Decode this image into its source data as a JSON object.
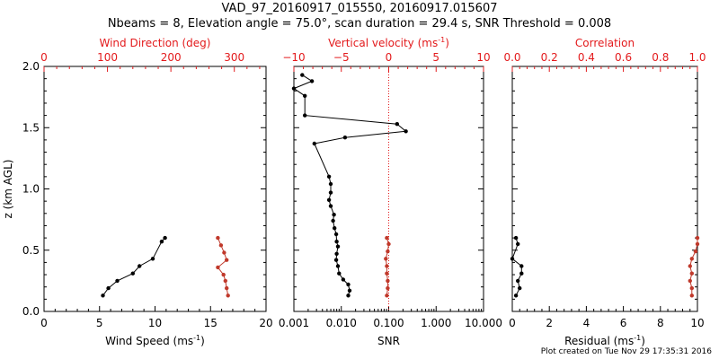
{
  "title_line1": "VAD_97_20160917_015550, 20160917.015607",
  "title_line2": "Nbeams = 8, Elevation angle = 75.0°, scan duration = 29.4 s, SNR Threshold = 0.008",
  "footer": "Plot created on Tue Nov 29 17:35:31 2016",
  "colors": {
    "black_series": "#000000",
    "red_series": "#c0392b",
    "top_axis": "#e31a1c"
  },
  "chart_data": [
    {
      "panel": "left",
      "type": "line",
      "ylabel": "z (km AGL)",
      "ylim": [
        0.0,
        2.0
      ],
      "y_ticks": [
        "0.0",
        "0.5",
        "1.0",
        "1.5",
        "2.0"
      ],
      "bottom_axis": {
        "label_main": "Wind Speed (ms",
        "label_sup": "-1",
        "label_end": ")",
        "range": [
          0,
          20
        ],
        "ticks": [
          "0",
          "5",
          "10",
          "15",
          "20"
        ]
      },
      "top_axis": {
        "label_main": "Wind Direction (deg)",
        "label_sup": "",
        "label_end": "",
        "range": [
          0,
          350
        ],
        "ticks": [
          "0",
          "100",
          "200",
          "300"
        ],
        "tick_values": [
          0,
          100,
          200,
          300
        ]
      },
      "series": [
        {
          "axis": "bottom",
          "color_key": "black_series",
          "points": [
            [
              10.9,
              0.6
            ],
            [
              10.6,
              0.57
            ],
            [
              9.8,
              0.43
            ],
            [
              8.6,
              0.37
            ],
            [
              8.0,
              0.31
            ],
            [
              6.6,
              0.25
            ],
            [
              5.8,
              0.19
            ],
            [
              5.3,
              0.13
            ]
          ]
        },
        {
          "axis": "top",
          "color_key": "red_series",
          "points": [
            [
              274,
              0.6
            ],
            [
              279,
              0.54
            ],
            [
              284,
              0.48
            ],
            [
              288,
              0.42
            ],
            [
              274,
              0.36
            ],
            [
              283,
              0.3
            ],
            [
              286,
              0.25
            ],
            [
              288,
              0.19
            ],
            [
              290,
              0.13
            ]
          ]
        }
      ]
    },
    {
      "panel": "middle",
      "type": "line",
      "ylim": [
        0.0,
        2.0
      ],
      "bottom_axis": {
        "label_main": "SNR",
        "label_sup": "",
        "label_end": "",
        "scale": "log",
        "range": [
          0.001,
          10
        ],
        "ticks": [
          "0.001",
          "0.010",
          "0.100",
          "1.000",
          "10.000"
        ],
        "tick_values": [
          0.001,
          0.01,
          0.1,
          1,
          10
        ]
      },
      "top_axis": {
        "label_main": "Vertical velocity (ms",
        "label_sup": "-1",
        "label_end": ")",
        "range": [
          -10,
          10
        ],
        "ticks": [
          "−10",
          "−5",
          "0",
          "5",
          "10"
        ],
        "tick_values": [
          -10,
          -5,
          0,
          5,
          10
        ]
      },
      "zero_line": 0,
      "series": [
        {
          "axis": "bottom",
          "color_key": "black_series",
          "points": [
            [
              0.0015,
              1.93
            ],
            [
              0.0024,
              1.88
            ],
            [
              0.001,
              1.82
            ],
            [
              0.0017,
              1.76
            ],
            [
              0.0017,
              1.6
            ],
            [
              0.15,
              1.53
            ],
            [
              0.23,
              1.47
            ],
            [
              0.012,
              1.42
            ],
            [
              0.0027,
              1.37
            ],
            [
              0.0055,
              1.1
            ],
            [
              0.006,
              1.04
            ],
            [
              0.006,
              0.97
            ],
            [
              0.0055,
              0.91
            ],
            [
              0.006,
              0.86
            ],
            [
              0.007,
              0.79
            ],
            [
              0.0067,
              0.74
            ],
            [
              0.0072,
              0.68
            ],
            [
              0.0078,
              0.63
            ],
            [
              0.008,
              0.57
            ],
            [
              0.0085,
              0.53
            ],
            [
              0.008,
              0.47
            ],
            [
              0.0078,
              0.42
            ],
            [
              0.0085,
              0.37
            ],
            [
              0.009,
              0.31
            ],
            [
              0.011,
              0.26
            ],
            [
              0.014,
              0.22
            ],
            [
              0.015,
              0.17
            ],
            [
              0.014,
              0.13
            ]
          ]
        },
        {
          "axis": "top",
          "color_key": "red_series",
          "points": [
            [
              -0.2,
              0.6
            ],
            [
              0.0,
              0.55
            ],
            [
              -0.1,
              0.49
            ],
            [
              -0.3,
              0.43
            ],
            [
              -0.2,
              0.37
            ],
            [
              -0.2,
              0.31
            ],
            [
              -0.1,
              0.25
            ],
            [
              -0.1,
              0.19
            ],
            [
              -0.2,
              0.13
            ]
          ]
        }
      ]
    },
    {
      "panel": "right",
      "type": "line",
      "ylim": [
        0.0,
        2.0
      ],
      "bottom_axis": {
        "label_main": "Residual (ms",
        "label_sup": "-1",
        "label_end": ")",
        "range": [
          0,
          10
        ],
        "ticks": [
          "0",
          "2",
          "4",
          "6",
          "8",
          "10"
        ],
        "tick_values": [
          0,
          2,
          4,
          6,
          8,
          10
        ]
      },
      "top_axis": {
        "label_main": "Correlation",
        "label_sup": "",
        "label_end": "",
        "range": [
          0,
          1
        ],
        "ticks": [
          "0.0",
          "0.2",
          "0.4",
          "0.6",
          "0.8",
          "1.0"
        ],
        "tick_values": [
          0,
          0.2,
          0.4,
          0.6,
          0.8,
          1.0
        ]
      },
      "series": [
        {
          "axis": "bottom",
          "color_key": "black_series",
          "points": [
            [
              0.2,
              0.6
            ],
            [
              0.3,
              0.55
            ],
            [
              0.0,
              0.43
            ],
            [
              0.5,
              0.37
            ],
            [
              0.5,
              0.31
            ],
            [
              0.3,
              0.25
            ],
            [
              0.4,
              0.19
            ],
            [
              0.2,
              0.13
            ]
          ]
        },
        {
          "axis": "top",
          "color_key": "red_series",
          "points": [
            [
              1.0,
              0.6
            ],
            [
              1.0,
              0.55
            ],
            [
              0.99,
              0.49
            ],
            [
              0.97,
              0.43
            ],
            [
              0.96,
              0.37
            ],
            [
              0.97,
              0.31
            ],
            [
              0.96,
              0.25
            ],
            [
              0.97,
              0.19
            ],
            [
              0.97,
              0.13
            ]
          ]
        }
      ]
    }
  ]
}
